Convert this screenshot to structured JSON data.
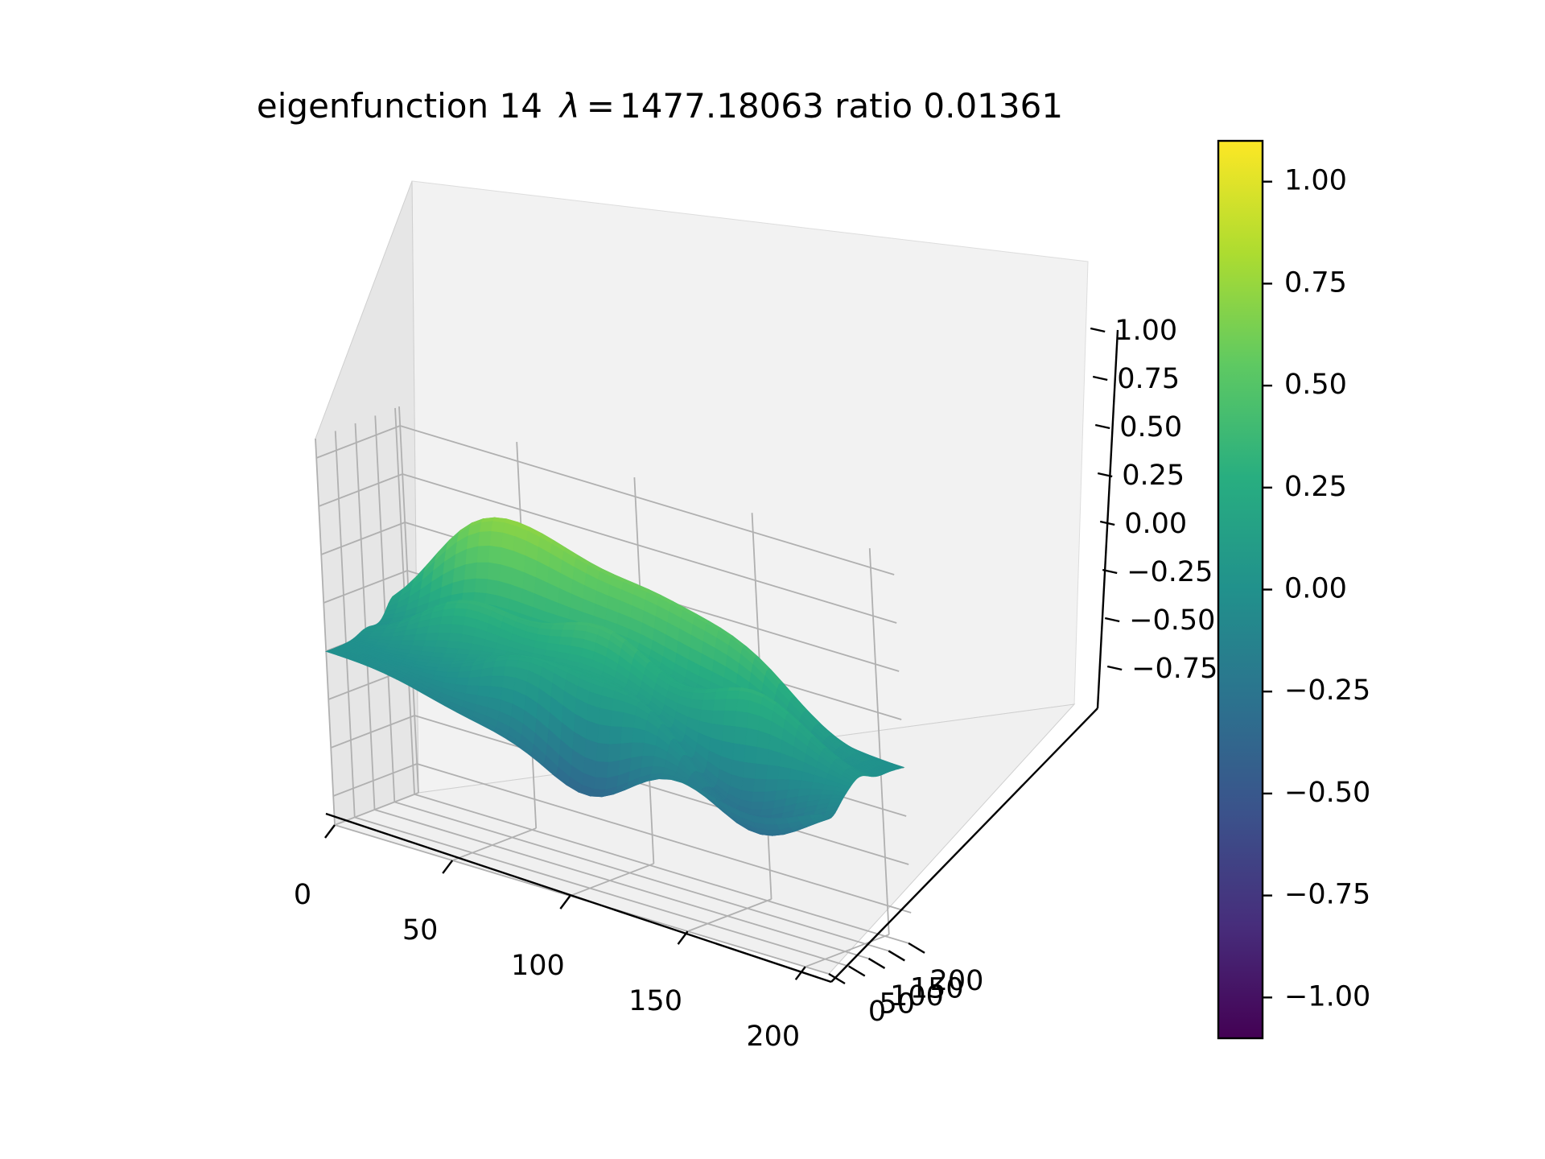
{
  "chart_data": {
    "type": "surface3d",
    "title_prefix": "eigenfunction 14",
    "title_lambda": "λ",
    "title_equals": "=",
    "title_value": "1477.18063 ratio 0.01361",
    "x_ticks": [
      "0",
      "50",
      "100",
      "150",
      "200"
    ],
    "y_ticks": [
      "0",
      "50",
      "100",
      "150",
      "200"
    ],
    "z_ticks": [
      "−0.75",
      "−0.50",
      "−0.25",
      "0.00",
      "0.25",
      "0.50",
      "0.75",
      "1.00"
    ],
    "xlim": [
      0,
      210
    ],
    "ylim": [
      0,
      210
    ],
    "zlim": [
      -0.9,
      1.1
    ],
    "grid": true,
    "colormap": "viridis",
    "colorbar": {
      "ticks": [
        "−1.00",
        "−0.75",
        "−0.50",
        "−0.25",
        "0.00",
        "0.25",
        "0.50",
        "0.75",
        "1.00"
      ],
      "range": [
        -1.1,
        1.1
      ]
    },
    "surface": {
      "peaks": [
        {
          "x": 35,
          "y": 175,
          "z": 0.52
        },
        {
          "x": 70,
          "y": 175,
          "z": 0.46
        },
        {
          "x": 110,
          "y": 175,
          "z": 0.42
        },
        {
          "x": 150,
          "y": 175,
          "z": 0.36
        },
        {
          "x": 45,
          "y": 105,
          "z": 0.32
        },
        {
          "x": 100,
          "y": 110,
          "z": 0.38
        },
        {
          "x": 165,
          "y": 100,
          "z": 0.36
        },
        {
          "x": 80,
          "y": 40,
          "z": 0.3
        },
        {
          "x": 130,
          "y": 45,
          "z": 0.36
        }
      ],
      "troughs": [
        {
          "x": 65,
          "y": 15,
          "z": -0.18
        },
        {
          "x": 110,
          "y": 15,
          "z": -0.45
        },
        {
          "x": 180,
          "y": 20,
          "z": -0.28
        },
        {
          "x": 155,
          "y": 60,
          "z": -0.35
        }
      ]
    }
  }
}
